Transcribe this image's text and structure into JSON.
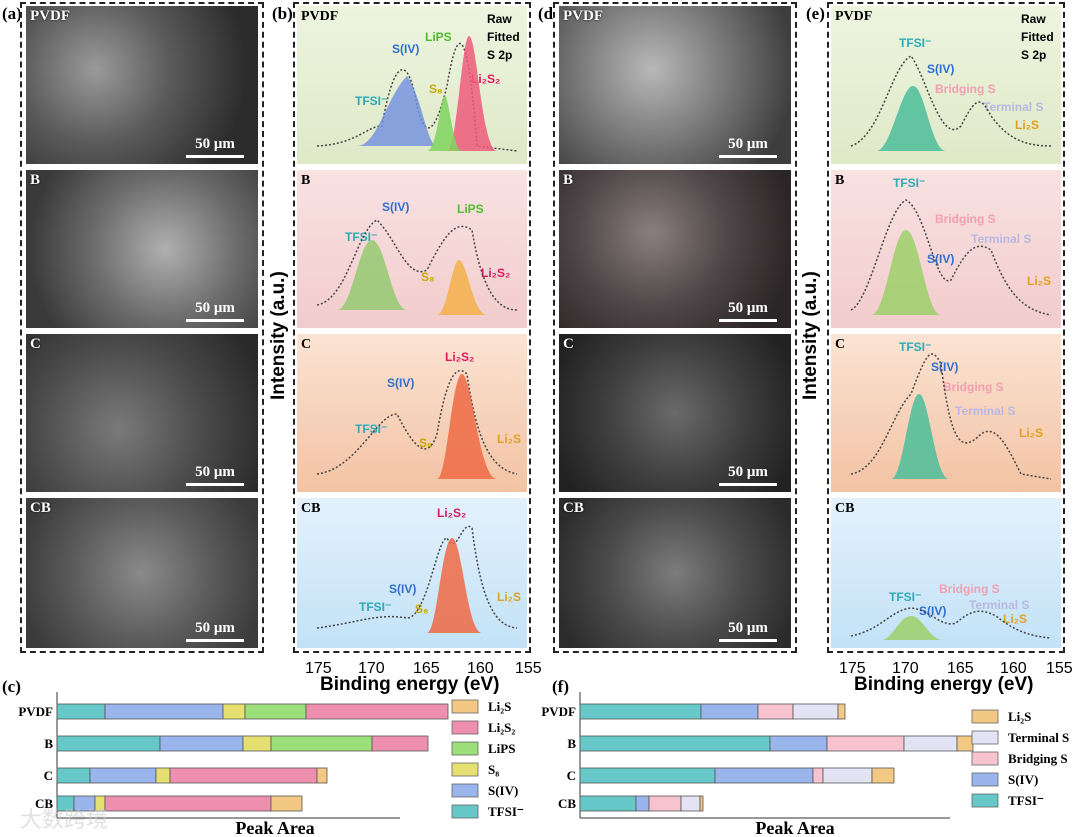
{
  "panel_labels": {
    "a": "(a)",
    "b": "(b)",
    "c": "(c)",
    "d": "(d)",
    "e": "(e)",
    "f": "(f)"
  },
  "sem_left": [
    {
      "label": "PVDF",
      "scale": "50 μm"
    },
    {
      "label": "B",
      "scale": "50 μm"
    },
    {
      "label": "C",
      "scale": "50 μm"
    },
    {
      "label": "CB",
      "scale": "50 μm"
    }
  ],
  "sem_right": [
    {
      "label": "PVDF",
      "scale": "50 μm"
    },
    {
      "label": "B",
      "scale": "50 μm"
    },
    {
      "label": "C",
      "scale": "50 μm"
    },
    {
      "label": "CB",
      "scale": "50 μm"
    }
  ],
  "xps_b": {
    "legend": {
      "raw": "Raw",
      "fitted": "Fitted",
      "peak": "S 2p"
    },
    "panels": [
      {
        "label": "PVDF",
        "annos": {
          "siv": "S(IV)",
          "lips": "LiPS",
          "tfsi": "TFSI⁻",
          "s8": "S₈",
          "li2s2": "Li₂S₂"
        }
      },
      {
        "label": "B",
        "annos": {
          "siv": "S(IV)",
          "lips": "LiPS",
          "tfsi": "TFSI⁻",
          "s8": "S₈",
          "li2s2": "Li₂S₂"
        }
      },
      {
        "label": "C",
        "annos": {
          "siv": "S(IV)",
          "tfsi": "TFSI⁻",
          "s8": "S₈",
          "li2s2": "Li₂S₂",
          "li2s": "Li₂S"
        }
      },
      {
        "label": "CB",
        "annos": {
          "siv": "S(IV)",
          "tfsi": "TFSI⁻",
          "s8": "S₈",
          "li2s2": "Li₂S₂",
          "li2s": "Li₂S"
        }
      }
    ]
  },
  "xps_e": {
    "legend": {
      "raw": "Raw",
      "fitted": "Fitted",
      "peak": "S 2p"
    },
    "panels": [
      {
        "label": "PVDF",
        "annos": {
          "tfsi": "TFSI⁻",
          "siv": "S(IV)",
          "bridging": "Bridging S",
          "terminal": "Terminal S",
          "li2s": "Li₂S"
        }
      },
      {
        "label": "B",
        "annos": {
          "tfsi": "TFSI⁻",
          "siv": "S(IV)",
          "bridging": "Bridging S",
          "terminal": "Terminal S",
          "li2s": "Li₂S"
        }
      },
      {
        "label": "C",
        "annos": {
          "tfsi": "TFSI⁻",
          "siv": "S(IV)",
          "bridging": "Bridging S",
          "terminal": "Terminal S",
          "li2s": "Li₂S"
        }
      },
      {
        "label": "CB",
        "annos": {
          "tfsi": "TFSI⁻",
          "siv": "S(IV)",
          "bridging": "Bridging S",
          "terminal": "Terminal S",
          "li2s": "Li₂S"
        }
      }
    ]
  },
  "axes": {
    "xlabel": "Binding energy (eV)",
    "ylabel": "Intensity (a.u.)",
    "xticks": [
      "175",
      "170",
      "165",
      "160",
      "155"
    ]
  },
  "chart_data": [
    {
      "type": "bar",
      "title": "(c)",
      "xlabel": "Peak Area",
      "categories": [
        "PVDF",
        "B",
        "C",
        "CB"
      ],
      "series": [
        {
          "name": "TFSI⁻",
          "color": "#66c8c8",
          "values": [
            48,
            103,
            33,
            17
          ]
        },
        {
          "name": "S(IV)",
          "color": "#9ab4ec",
          "values": [
            118,
            83,
            66,
            21
          ]
        },
        {
          "name": "S₈",
          "color": "#e6df72",
          "values": [
            22,
            28,
            14,
            10
          ]
        },
        {
          "name": "LiPS",
          "color": "#9cde7a",
          "values": [
            61,
            101,
            0,
            0
          ]
        },
        {
          "name": "Li₂S₂",
          "color": "#ef8fb0",
          "values": [
            142,
            56,
            147,
            166
          ]
        },
        {
          "name": "Li₂S",
          "color": "#f3c882",
          "values": [
            0,
            0,
            10,
            31
          ]
        }
      ]
    },
    {
      "type": "bar",
      "title": "(f)",
      "xlabel": "Peak Area",
      "categories": [
        "PVDF",
        "B",
        "C",
        "CB"
      ],
      "series": [
        {
          "name": "TFSI⁻",
          "color": "#66c8c8",
          "values": [
            121,
            190,
            135,
            56
          ]
        },
        {
          "name": "S(IV)",
          "color": "#9ab4ec",
          "values": [
            57,
            57,
            98,
            13
          ]
        },
        {
          "name": "Bridging S",
          "color": "#f6c3cf",
          "values": [
            35,
            77,
            10,
            32
          ]
        },
        {
          "name": "Terminal S",
          "color": "#e3e3f4",
          "values": [
            45,
            53,
            49,
            19
          ]
        },
        {
          "name": "Li₂S",
          "color": "#f3c882",
          "values": [
            7,
            16,
            22,
            3
          ]
        }
      ]
    }
  ],
  "watermark": "大数跨境"
}
